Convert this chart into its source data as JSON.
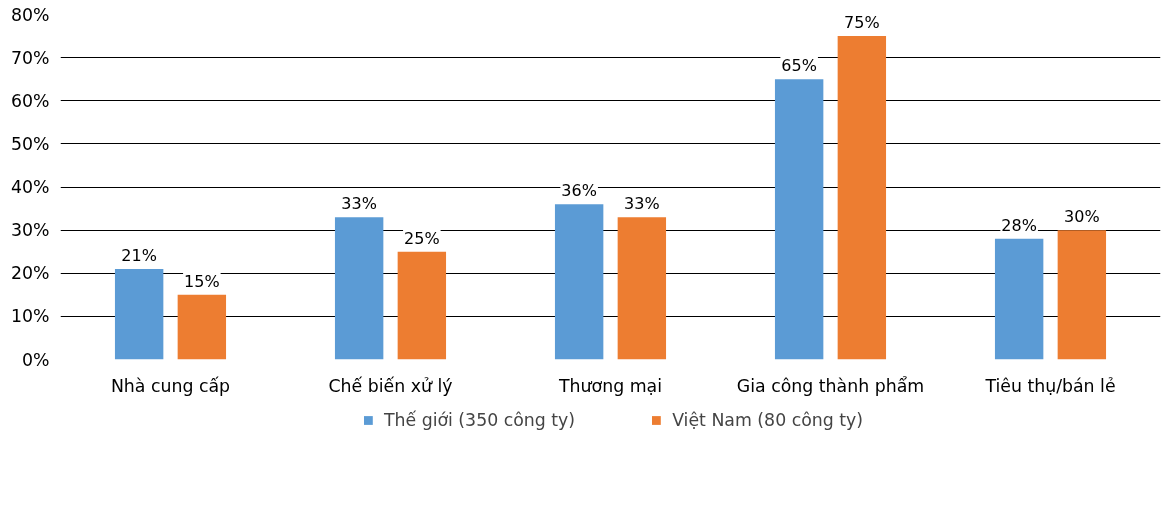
{
  "chart_data": {
    "type": "bar",
    "categories": [
      "Nhà cung cấp",
      "Chế biến xử lý",
      "Thương mại",
      "Gia công thành phẩm",
      "Tiêu thụ/bán lẻ"
    ],
    "series": [
      {
        "name": "Thế giới (350 công ty)",
        "color": "#5b9bd5",
        "values": [
          21,
          33,
          36,
          65,
          28
        ],
        "value_labels": [
          "21%",
          "33%",
          "36%",
          "65%",
          "28%"
        ]
      },
      {
        "name": "Việt Nam (80 công ty)",
        "color": "#ed7d31",
        "values": [
          15,
          25,
          33,
          75,
          30
        ],
        "value_labels": [
          "15%",
          "25%",
          "33%",
          "75%",
          "30%"
        ]
      }
    ],
    "ylim": [
      0,
      80
    ],
    "yticks": [
      {
        "value": 0,
        "label": "0%"
      },
      {
        "value": 10,
        "label": "10%"
      },
      {
        "value": 20,
        "label": "20%"
      },
      {
        "value": 30,
        "label": "30%"
      },
      {
        "value": 40,
        "label": "40%"
      },
      {
        "value": 50,
        "label": "50%"
      },
      {
        "value": 60,
        "label": "60%"
      },
      {
        "value": 70,
        "label": "70%"
      },
      {
        "value": 80,
        "label": "80%"
      }
    ],
    "grid": "y",
    "legend": "bottom"
  }
}
